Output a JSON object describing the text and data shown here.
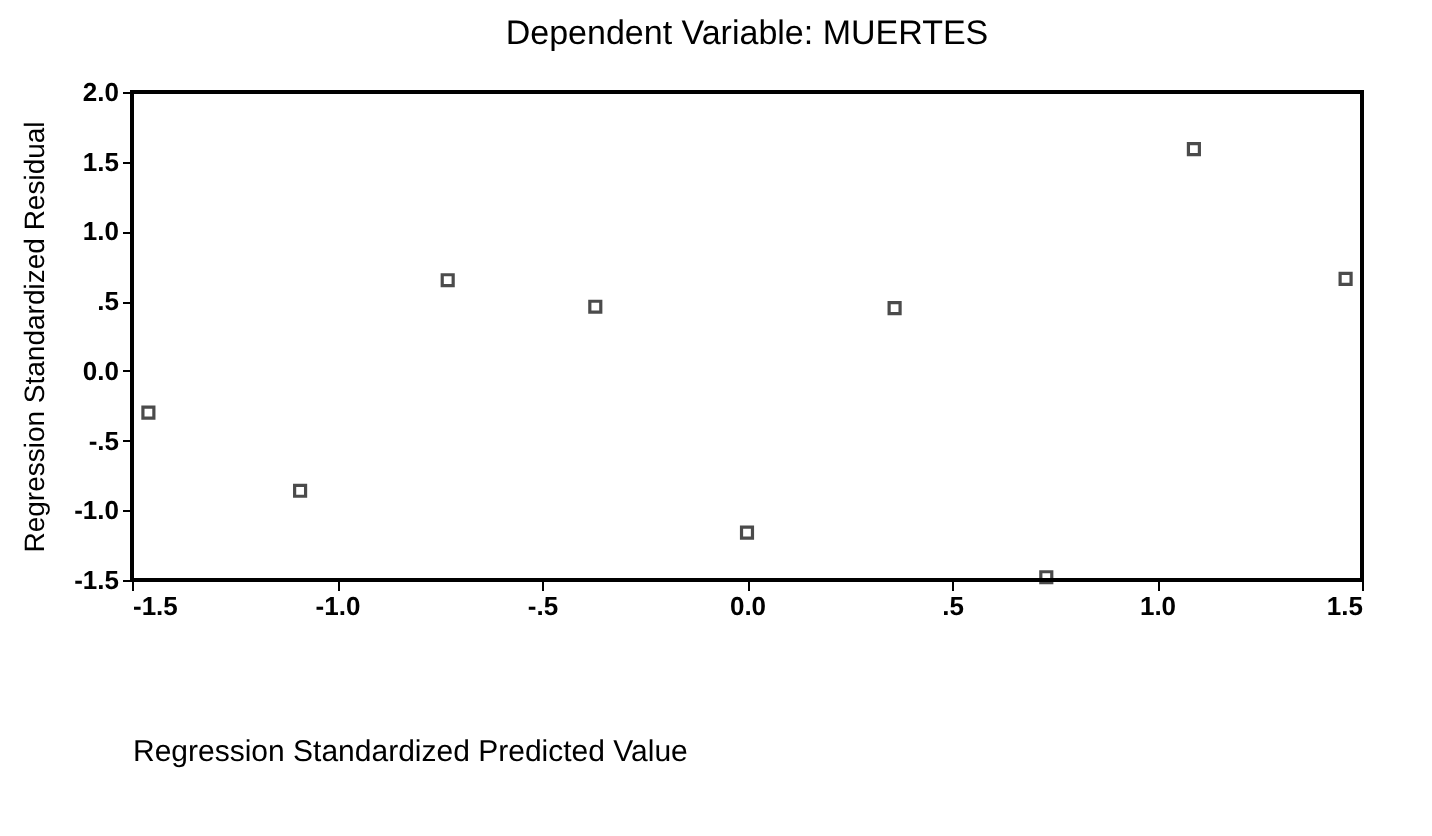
{
  "chart_data": {
    "type": "scatter",
    "title": "Dependent Variable: MUERTES",
    "xlabel": "Regression Standardized Predicted Value",
    "ylabel": "Regression Standardized Residual",
    "x": [
      -1.46,
      -1.09,
      -0.73,
      -0.37,
      0.0,
      0.36,
      0.73,
      1.09,
      1.46
    ],
    "series": [
      {
        "color": "#000000",
        "values": [
          -0.3,
          -0.86,
          0.65,
          0.46,
          -1.16,
          0.45,
          -1.48,
          1.59,
          0.66
        ]
      }
    ],
    "xlim": [
      -1.5,
      1.5
    ],
    "ylim": [
      -1.5,
      2.0
    ],
    "xticks": [
      {
        "value": -1.5,
        "label": "-1.5"
      },
      {
        "value": -1,
        "label": "-1.0"
      },
      {
        "value": -0.5,
        "label": "-.5"
      },
      {
        "value": 0,
        "label": "0.0"
      },
      {
        "value": 0.5,
        "label": ".5"
      },
      {
        "value": 1,
        "label": "1.0"
      },
      {
        "value": 1.5,
        "label": "1.5"
      }
    ],
    "yticks": [
      {
        "value": -1.5,
        "label": "-1.5"
      },
      {
        "value": -1,
        "label": "-1.0"
      },
      {
        "value": -0.5,
        "label": "-.5"
      },
      {
        "value": 0,
        "label": "0.0"
      },
      {
        "value": 0.5,
        "label": ".5"
      },
      {
        "value": 1,
        "label": "1.0"
      },
      {
        "value": 1.5,
        "label": "1.5"
      },
      {
        "value": 2,
        "label": "2.0"
      }
    ],
    "grid": false,
    "marker": "square"
  }
}
